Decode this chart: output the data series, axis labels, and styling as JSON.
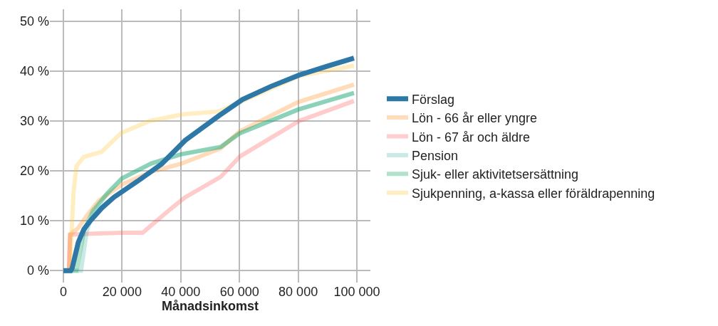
{
  "chart_data": {
    "type": "line",
    "xlabel": "Månadsinkomst",
    "xlim": [
      -4600,
      104600
    ],
    "ylim": [
      -2.4,
      52.4
    ],
    "xticks": [
      {
        "value": 0,
        "label": "0"
      },
      {
        "value": 20000,
        "label": "20 000"
      },
      {
        "value": 40000,
        "label": "40 000"
      },
      {
        "value": 60000,
        "label": "60 000"
      },
      {
        "value": 80000,
        "label": "80 000"
      },
      {
        "value": 100000,
        "label": "100 000"
      }
    ],
    "yticks": [
      {
        "value": 0,
        "label": "0 %"
      },
      {
        "value": 10,
        "label": "10 %"
      },
      {
        "value": 20,
        "label": "20 %"
      },
      {
        "value": 30,
        "label": "30 %"
      },
      {
        "value": 40,
        "label": "40 %"
      },
      {
        "value": 50,
        "label": "50 %"
      }
    ],
    "grid": true,
    "legend": "right",
    "marker": "none",
    "line_style": "solid",
    "series": [
      {
        "name": "Förslag",
        "color": "#2e78a8",
        "x": [
          0,
          2500,
          3000,
          5100,
          7000,
          9200,
          13000,
          17200,
          25200,
          33500,
          41500,
          52900,
          61000,
          70600,
          80300,
          90000,
          99000
        ],
        "values": [
          0,
          0,
          0.5,
          5.7,
          8.3,
          10,
          12.5,
          14.7,
          17.9,
          21.4,
          26.1,
          31,
          34.3,
          36.9,
          39.2,
          41,
          42.6
        ]
      },
      {
        "name": "Lön - 66 år eller yngre",
        "color": "#ff8c1a",
        "x": [
          0,
          1900,
          2300,
          5000,
          8000,
          12000,
          20000,
          30000,
          40000,
          53600,
          60000,
          80000,
          99000
        ],
        "values": [
          0,
          0,
          7.2,
          8.5,
          11,
          14,
          17.3,
          19.8,
          21.4,
          24.5,
          27.9,
          33.8,
          37.3
        ]
      },
      {
        "name": "Lön - 67 år och äldre",
        "color": "#ff5a5a",
        "x": [
          0,
          1900,
          2300,
          10000,
          20000,
          27000,
          36600,
          41500,
          53600,
          60200,
          80300,
          99000
        ],
        "values": [
          0,
          0,
          7.2,
          7.4,
          7.6,
          7.6,
          12.4,
          14.7,
          18.8,
          22.9,
          30,
          34
        ]
      },
      {
        "name": "Pension",
        "color": "#4bb8b0",
        "x": [
          0,
          6000,
          8000,
          10000,
          15000,
          20000,
          30000,
          40000,
          53600,
          60000,
          80000,
          99000
        ],
        "values": [
          0,
          0,
          8,
          11.5,
          15.5,
          18.5,
          21.5,
          23.3,
          24.8,
          27.5,
          32.3,
          35.6
        ]
      },
      {
        "name": "Sjuk- eller aktivitetsersättning",
        "color": "#00a050",
        "x": [
          0,
          4500,
          7000,
          10000,
          15000,
          20000,
          30000,
          40000,
          53600,
          60000,
          80000,
          99000
        ],
        "values": [
          0,
          0,
          8,
          12,
          15.5,
          18.5,
          21.5,
          23.3,
          24.8,
          27.5,
          32.3,
          35.6
        ]
      },
      {
        "name": "Sjukpenning, a-kassa eller föräldrapenning",
        "color": "#ffc83a",
        "x": [
          0,
          2300,
          2800,
          3500,
          4500,
          7000,
          13000,
          19700,
          29400,
          41500,
          52900,
          61000,
          80300,
          99000
        ],
        "values": [
          0,
          0,
          7.6,
          16,
          21,
          22.8,
          23.8,
          27.6,
          30,
          31.4,
          31.9,
          34,
          39,
          41.1
        ]
      }
    ]
  }
}
